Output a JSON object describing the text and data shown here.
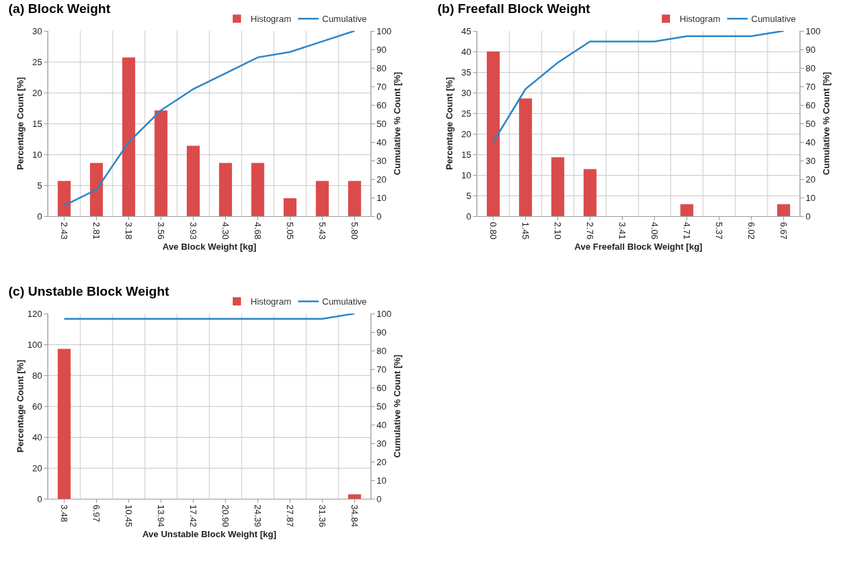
{
  "chart_data": [
    {
      "type": "bar",
      "title": "(a) Block Weight",
      "xlabel": "Ave Block Weight [kg]",
      "ylabel": "Percentage Count [%]",
      "y2label": "Cumulative % Count [%]",
      "categories": [
        "2.43",
        "2.81",
        "3.18",
        "3.56",
        "3.93",
        "4.30",
        "4.68",
        "5.05",
        "5.43",
        "5.80"
      ],
      "series": [
        {
          "name": "Histogram",
          "color": "#dc4b4b",
          "values": [
            5.7,
            8.6,
            25.7,
            17.1,
            11.4,
            8.6,
            8.6,
            2.9,
            5.7,
            5.7
          ]
        },
        {
          "name": "Cumulative",
          "type": "line",
          "axis": "y2",
          "color": "#2c86c8",
          "values": [
            5.7,
            14.3,
            40,
            57.1,
            68.6,
            77.1,
            85.7,
            88.6,
            94.3,
            100
          ]
        }
      ],
      "ylim": [
        0,
        30
      ],
      "yticks": [
        0,
        5,
        10,
        15,
        20,
        25,
        30
      ],
      "y2lim": [
        0,
        100
      ],
      "y2ticks": [
        0,
        10,
        20,
        30,
        40,
        50,
        60,
        70,
        80,
        90,
        100
      ],
      "grid": true,
      "legend": "top right",
      "marker": "none",
      "line_style": "solid"
    },
    {
      "type": "bar",
      "title": "(b) Freefall Block Weight",
      "xlabel": "Ave Freefall Block Weight [kg]",
      "ylabel": "Percentage Count [%]",
      "y2label": "Cumulative % Count [%]",
      "categories": [
        "0.80",
        "1.45",
        "2.10",
        "2.76",
        "3.41",
        "4.06",
        "4.71",
        "5.37",
        "6.02",
        "6.67"
      ],
      "series": [
        {
          "name": "Histogram",
          "color": "#dc4b4b",
          "values": [
            40,
            28.6,
            14.3,
            11.4,
            0,
            0,
            2.9,
            0,
            0,
            2.9
          ]
        },
        {
          "name": "Cumulative",
          "type": "line",
          "axis": "y2",
          "color": "#2c86c8",
          "values": [
            40,
            68.6,
            82.9,
            94.3,
            94.3,
            94.3,
            97.1,
            97.1,
            97.1,
            100
          ]
        }
      ],
      "ylim": [
        0,
        45
      ],
      "yticks": [
        0,
        5,
        10,
        15,
        20,
        25,
        30,
        35,
        40,
        45
      ],
      "y2lim": [
        0,
        100
      ],
      "y2ticks": [
        0,
        10,
        20,
        30,
        40,
        50,
        60,
        70,
        80,
        90,
        100
      ],
      "grid": true,
      "legend": "top right",
      "marker": "none",
      "line_style": "solid"
    },
    {
      "type": "bar",
      "title": "(c) Unstable Block Weight",
      "xlabel": "Ave Unstable Block Weight [kg]",
      "ylabel": "Percentage Count [%]",
      "y2label": "Cumulative % Count [%]",
      "categories": [
        "3.48",
        "6.97",
        "10.45",
        "13.94",
        "17.42",
        "20.90",
        "24.39",
        "27.87",
        "31.36",
        "34.84"
      ],
      "series": [
        {
          "name": "Histogram",
          "color": "#dc4b4b",
          "values": [
            97.1,
            0,
            0,
            0,
            0,
            0,
            0,
            0,
            0,
            2.9
          ]
        },
        {
          "name": "Cumulative",
          "type": "line",
          "axis": "y2",
          "color": "#2c86c8",
          "values": [
            97.1,
            97.1,
            97.1,
            97.1,
            97.1,
            97.1,
            97.1,
            97.1,
            97.1,
            100
          ]
        }
      ],
      "ylim": [
        0,
        120
      ],
      "yticks": [
        0,
        20,
        40,
        60,
        80,
        100,
        120
      ],
      "y2lim": [
        0,
        100
      ],
      "y2ticks": [
        0,
        10,
        20,
        30,
        40,
        50,
        60,
        70,
        80,
        90,
        100
      ],
      "grid": true,
      "legend": "top right",
      "marker": "none",
      "line_style": "solid"
    }
  ]
}
